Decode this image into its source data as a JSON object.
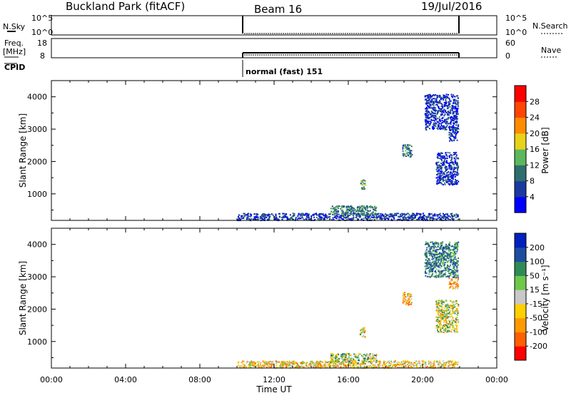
{
  "header": {
    "station": "Buckland Park (fitACF)",
    "beam": "Beam 16",
    "date": "19/Jul/2016"
  },
  "top_panels": {
    "nsky": {
      "label": "N.Sky",
      "left_ticks": [
        "10^5",
        "10^0"
      ],
      "right_ticks": [
        "10^5",
        "10^0"
      ],
      "right_label": "N.Search"
    },
    "freq": {
      "label_line1": "Freq.",
      "label_line2": "[MHz]",
      "left_ticks": [
        "18",
        "8"
      ],
      "right_ticks": [
        "60",
        "0"
      ],
      "right_label": "Nave"
    },
    "cpid": {
      "label": "CPID",
      "text": "normal (fast) 151"
    }
  },
  "colors": {
    "power": [
      "#0000ff",
      "#1a3aa0",
      "#2e6e6e",
      "#5cb85c",
      "#e8d21a",
      "#ff8c00",
      "#ff4500",
      "#ff0000"
    ],
    "velocity": [
      "#ff0000",
      "#ff6000",
      "#ff9900",
      "#ffd000",
      "#c8c8c8",
      "#6ec84a",
      "#2e8b57",
      "#1e4da0",
      "#0020c0"
    ]
  },
  "chart_data": [
    {
      "type": "scatter",
      "title": "Power",
      "xlabel": "Time UT",
      "ylabel": "Slant Range [km]",
      "x_ticks": [
        "00:00",
        "04:00",
        "08:00",
        "12:00",
        "16:00",
        "20:00",
        "00:00"
      ],
      "y_ticks": [
        "1000",
        "2000",
        "3000",
        "4000"
      ],
      "xlim": [
        0,
        24
      ],
      "ylim": [
        180,
        4500
      ],
      "colorbar": {
        "label": "Power [dB]",
        "ticks": [
          "4",
          "8",
          "12",
          "16",
          "20",
          "24",
          "28"
        ],
        "range": [
          0,
          32
        ]
      },
      "data_coverage_hours": [
        10.0,
        21.9
      ],
      "regions": [
        {
          "x": [
            10.0,
            21.9
          ],
          "y": [
            200,
            420
          ],
          "value": 6
        },
        {
          "x": [
            15.0,
            17.5
          ],
          "y": [
            350,
            650
          ],
          "value": 11
        },
        {
          "x": [
            16.6,
            16.9
          ],
          "y": [
            1150,
            1450
          ],
          "value": 13
        },
        {
          "x": [
            18.9,
            19.4
          ],
          "y": [
            2150,
            2550
          ],
          "value": 10
        },
        {
          "x": [
            20.7,
            21.9
          ],
          "y": [
            1300,
            2300
          ],
          "value": 5
        },
        {
          "x": [
            21.4,
            21.9
          ],
          "y": [
            2650,
            3050
          ],
          "value": 6
        },
        {
          "x": [
            20.1,
            21.9
          ],
          "y": [
            3000,
            4100
          ],
          "value": 5
        }
      ]
    },
    {
      "type": "scatter",
      "title": "Velocity",
      "xlabel": "Time UT",
      "ylabel": "Slant Range [km]",
      "x_ticks": [
        "00:00",
        "04:00",
        "08:00",
        "12:00",
        "16:00",
        "20:00",
        "00:00"
      ],
      "y_ticks": [
        "1000",
        "2000",
        "3000",
        "4000"
      ],
      "xlim": [
        0,
        24
      ],
      "ylim": [
        180,
        4500
      ],
      "colorbar": {
        "label": "Velocity [m s⁻¹]",
        "ticks": [
          "200",
          "100",
          "50",
          "15",
          "-15",
          "-50",
          "-100",
          "-200"
        ]
      },
      "data_coverage_hours": [
        10.0,
        21.9
      ],
      "regions": [
        {
          "x": [
            10.0,
            21.9
          ],
          "y": [
            200,
            420
          ],
          "value": -40
        },
        {
          "x": [
            15.0,
            17.5
          ],
          "y": [
            350,
            650
          ],
          "value": 20
        },
        {
          "x": [
            16.6,
            16.9
          ],
          "y": [
            1150,
            1450
          ],
          "value": -30
        },
        {
          "x": [
            18.9,
            19.4
          ],
          "y": [
            2150,
            2550
          ],
          "value": -60
        },
        {
          "x": [
            20.7,
            21.9
          ],
          "y": [
            1300,
            2300
          ],
          "value": 0
        },
        {
          "x": [
            21.4,
            21.9
          ],
          "y": [
            2650,
            3050
          ],
          "value": -80
        },
        {
          "x": [
            20.1,
            21.9
          ],
          "y": [
            3000,
            4100
          ],
          "value": 100
        }
      ]
    }
  ]
}
